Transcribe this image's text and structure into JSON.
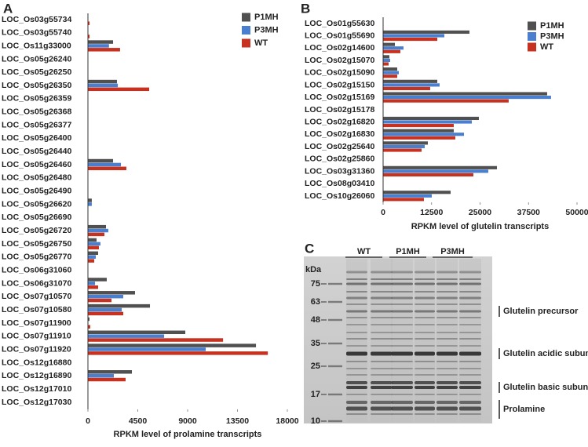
{
  "chart_data": [
    {
      "type": "hbar",
      "panel": "A",
      "xlabel": "RPKM level of prolamine transcripts",
      "categories": [
        "LOC_Os03g55734",
        "LOC_Os03g55740",
        "LOC_Os11g33000",
        "LOC_Os05g26240",
        "LOC_Os05g26250",
        "LOC_Os05g26350",
        "LOC_Os05g26359",
        "LOC_Os05g26368",
        "LOC_Os05g26377",
        "LOC_Os05g26400",
        "LOC_Os05g26440",
        "LOC_Os05g26460",
        "LOC_Os05g26480",
        "LOC_Os05g26490",
        "LOC_Os05g26620",
        "LOC_Os05g26690",
        "LOC_Os05g26720",
        "LOC_Os05g26750",
        "LOC_Os05g26770",
        "LOC_Os06g31060",
        "LOC_Os06g31070",
        "LOC_Os07g10570",
        "LOC_Os07g10580",
        "LOC_Os07g11900",
        "LOC_Os07g11910",
        "LOC_Os07g11920",
        "LOC_Os12g16880",
        "LOC_Os12g16890",
        "LOC_Os12g17010",
        "LOC_Os12g17030"
      ],
      "series": [
        {
          "name": "P1MH",
          "color": "#505050",
          "values": [
            20,
            0,
            2270,
            0,
            0,
            2620,
            0,
            0,
            0,
            0,
            0,
            2270,
            0,
            0,
            350,
            0,
            1630,
            780,
            920,
            0,
            1700,
            4250,
            5600,
            140,
            8790,
            15170,
            0,
            3970,
            0,
            0
          ]
        },
        {
          "name": "P3MH",
          "color": "#4a7fcf",
          "values": [
            0,
            0,
            1900,
            0,
            0,
            2700,
            0,
            0,
            0,
            0,
            0,
            2980,
            0,
            0,
            350,
            0,
            1840,
            1130,
            710,
            0,
            640,
            3190,
            3050,
            0,
            6880,
            10630,
            0,
            2340,
            0,
            0
          ]
        },
        {
          "name": "WT",
          "color": "#c7311f",
          "values": [
            150,
            150,
            2900,
            0,
            0,
            5530,
            0,
            0,
            0,
            0,
            0,
            3470,
            0,
            0,
            0,
            0,
            1490,
            990,
            570,
            0,
            920,
            2130,
            3190,
            210,
            12200,
            16240,
            0,
            3400,
            0,
            0
          ]
        }
      ],
      "xlim": [
        0,
        18000
      ],
      "xticks": [
        0,
        4500,
        9000,
        13500,
        18000
      ],
      "legend": "upper right"
    },
    {
      "type": "hbar",
      "panel": "B",
      "xlabel": "RPKM level of glutelin transcripts",
      "categories": [
        "LOC_Os01g55630",
        "LOC_Os01g55690",
        "LOC_Os02g14600",
        "LOC_Os02g15070",
        "LOC_Os02g15090",
        "LOC_Os02g15150",
        "LOC_Os02g15169",
        "LOC_Os02g15178",
        "LOC_Os02g16820",
        "LOC_Os02g16830",
        "LOC_Os02g25640",
        "LOC_Os02g25860",
        "LOC_Os03g31360",
        "LOC_Os08g03410",
        "LOC_Os10g26060"
      ],
      "series": [
        {
          "name": "P1MH",
          "color": "#505050",
          "values": [
            0,
            22270,
            3040,
            1620,
            3640,
            13970,
            42300,
            0,
            24690,
            18220,
            11540,
            0,
            29350,
            0,
            17410
          ]
        },
        {
          "name": "P3MH",
          "color": "#4a7fcf",
          "values": [
            0,
            15790,
            5260,
            1820,
            4050,
            14570,
            43300,
            0,
            22870,
            20850,
            10730,
            0,
            27120,
            0,
            12550
          ]
        },
        {
          "name": "WT",
          "color": "#c7311f",
          "values": [
            0,
            13970,
            4450,
            1420,
            3640,
            12140,
            32380,
            0,
            18220,
            18620,
            9920,
            0,
            23280,
            0,
            10520
          ]
        }
      ],
      "xlim": [
        0,
        50000
      ],
      "xticks": [
        0,
        12500,
        25000,
        37500,
        50000
      ],
      "legend": "upper right"
    }
  ],
  "gel": {
    "panel": "C",
    "lanes": [
      "WT",
      "P1MH",
      "P3MH"
    ],
    "unit": "kDa",
    "markers": [
      "75",
      "63",
      "48",
      "35",
      "25",
      "17",
      "10"
    ],
    "bands": [
      "Glutelin precursor",
      "Glutelin acidic subunit",
      "Glutelin basic subunit",
      "Prolamine"
    ]
  }
}
